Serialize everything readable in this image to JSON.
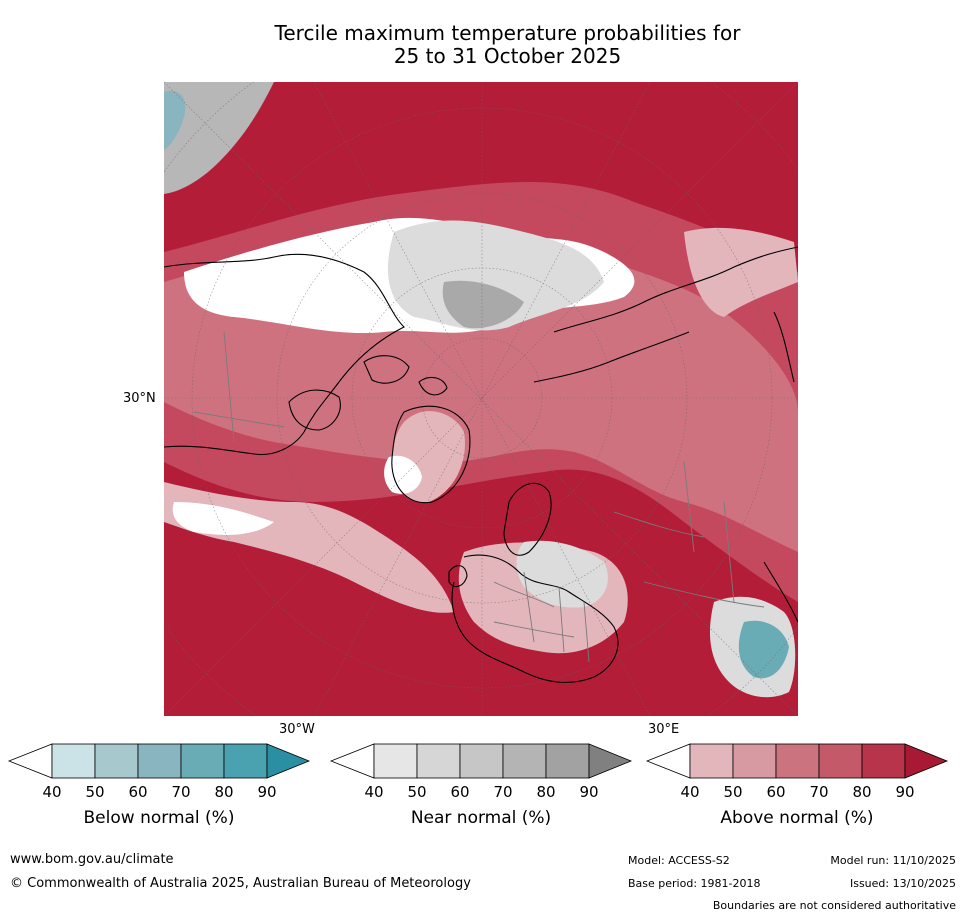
{
  "title": {
    "line1": "Tercile maximum temperature probabilities for",
    "line2": "25 to 31 October 2025"
  },
  "map": {
    "lat_label": "30°N",
    "lon_labels": [
      "30°W",
      "30°E"
    ]
  },
  "colorbars": [
    {
      "label": "Below normal (%)",
      "ticks": [
        "40",
        "50",
        "60",
        "70",
        "80",
        "90"
      ],
      "colors": [
        "#ffffff",
        "#cbe2e6",
        "#a7c8cd",
        "#89b5c0",
        "#69acb6",
        "#4aa1b0",
        "#2a8fa2"
      ]
    },
    {
      "label": "Near normal (%)",
      "ticks": [
        "40",
        "50",
        "60",
        "70",
        "80",
        "90"
      ],
      "colors": [
        "#ffffff",
        "#e6e6e6",
        "#d6d6d6",
        "#c6c6c6",
        "#b4b4b4",
        "#a2a2a2",
        "#808080"
      ]
    },
    {
      "label": "Above normal (%)",
      "ticks": [
        "40",
        "50",
        "60",
        "70",
        "80",
        "90"
      ],
      "colors": [
        "#ffffff",
        "#e3b6bc",
        "#d79aa2",
        "#cb747f",
        "#c45a69",
        "#b8344b",
        "#a81a34"
      ]
    }
  ],
  "footer": {
    "website": "www.bom.gov.au/climate",
    "copyright": "© Commonwealth of Australia 2025, Australian Bureau of Meteorology",
    "model": "Model: ACCESS-S2",
    "model_run": "Model run: 11/10/2025",
    "base_period": "Base period: 1981-2018",
    "issued": "Issued: 13/10/2025",
    "disclaimer": "Boundaries are not considered authoritative"
  }
}
